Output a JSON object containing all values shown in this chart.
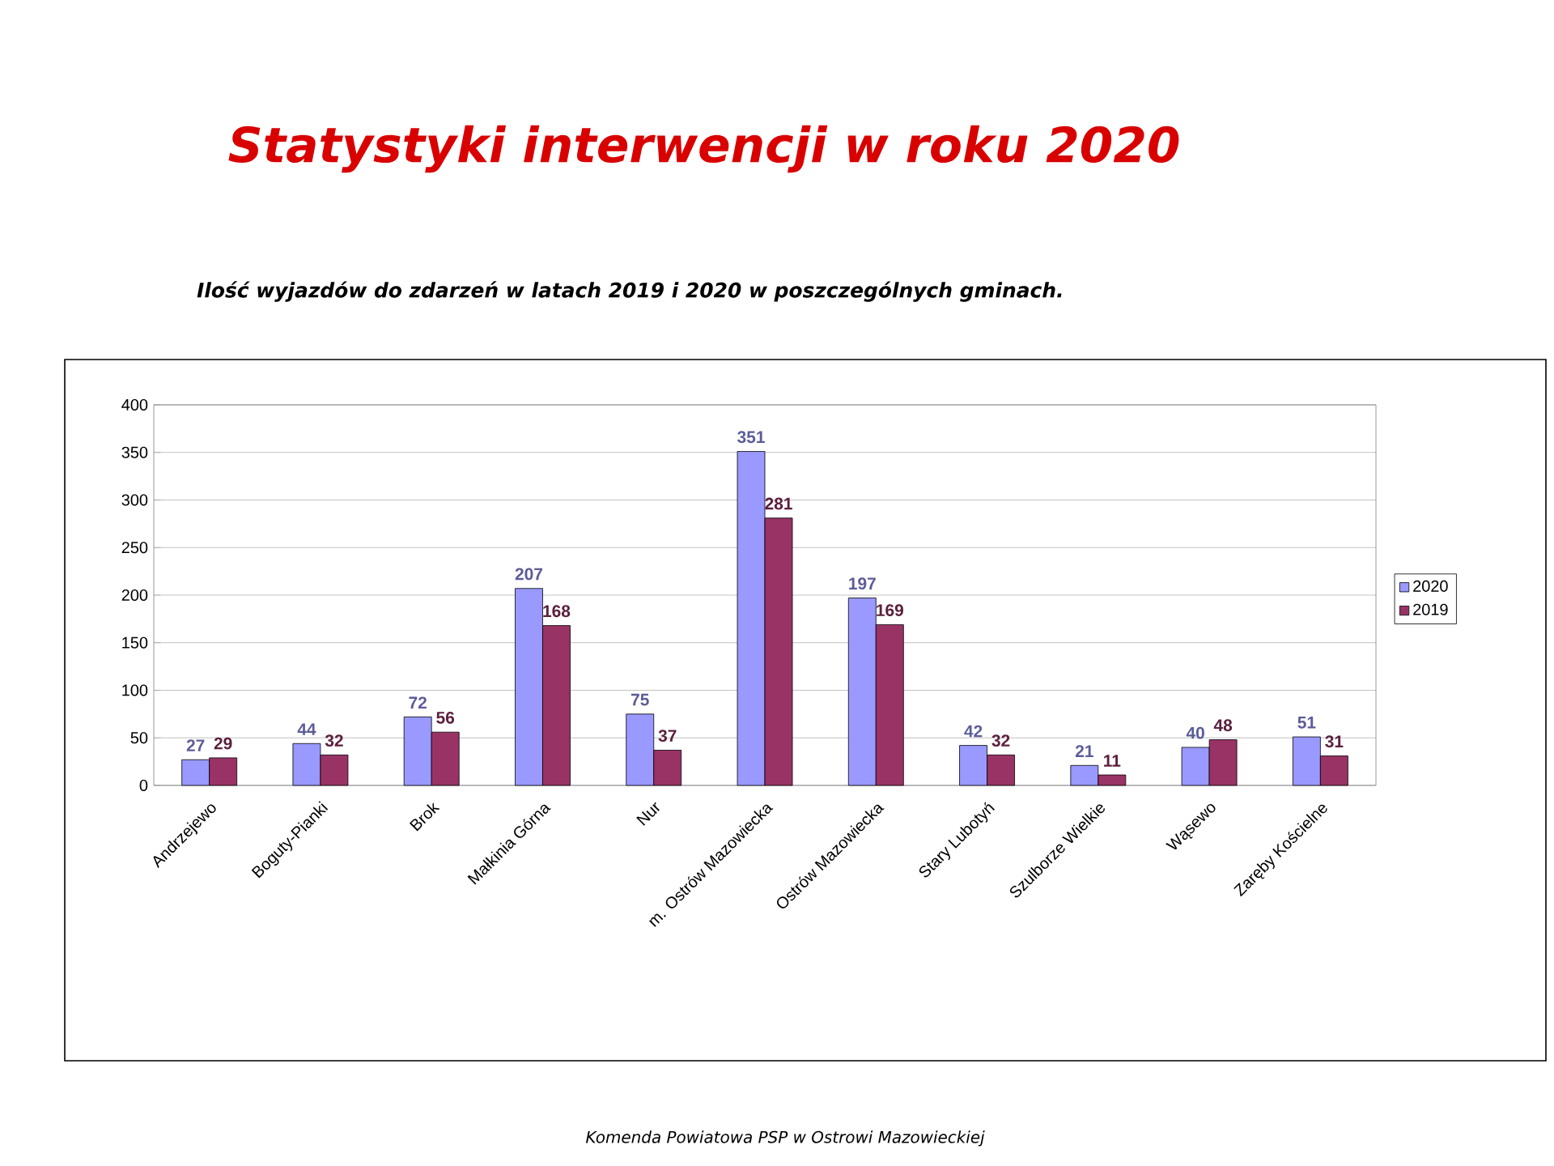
{
  "chart_data": {
    "type": "bar",
    "title": "Statystyki interwencji w roku 2020",
    "subtitle": "Ilość wyjazdów do zdarzeń w latach 2019 i 2020 w poszczególnych gminach.",
    "categories": [
      "Andrzejewo",
      "Boguty-Pianki",
      "Brok",
      "Małkinia Górna",
      "Nur",
      "m. Ostrów Mazowiecka",
      "Ostrów Mazowiecka",
      "Stary Lubotyń",
      "Szulborze Wielkie",
      "Wąsewo",
      "Zaręby Kościelne"
    ],
    "series": [
      {
        "name": "2020",
        "color": "#9999ff",
        "values": [
          27,
          44,
          72,
          207,
          75,
          351,
          197,
          42,
          21,
          40,
          51
        ]
      },
      {
        "name": "2019",
        "color": "#993366",
        "values": [
          29,
          32,
          56,
          168,
          37,
          281,
          169,
          32,
          11,
          48,
          31
        ]
      }
    ],
    "ylim": [
      0,
      400
    ],
    "yticks": [
      0,
      50,
      100,
      150,
      200,
      250,
      300,
      350,
      400
    ],
    "grid": "y",
    "legend": "right",
    "data_labels": true,
    "annotations": [
      "Komenda Powiatowa PSP w Ostrowi Mazowieckiej"
    ]
  }
}
